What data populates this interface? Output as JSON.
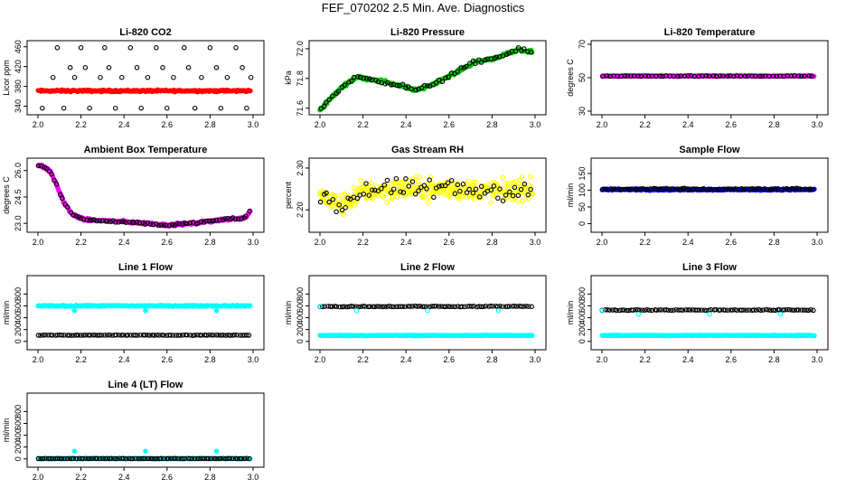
{
  "page_title": "FEF_070202  2.5 Min. Ave. Diagnostics",
  "colors": {
    "black": "#000000",
    "red": "#ff0000",
    "green": "#00cc00",
    "magenta": "#ff00ff",
    "yellow": "#ffff00",
    "blue": "#0000ff",
    "cyan": "#00ffff"
  },
  "chart_data": [
    {
      "type": "scatter",
      "title": "Li-820 CO2",
      "ylabel": "Licor ppm",
      "xlim": [
        2.0,
        3.0
      ],
      "ylim": [
        330,
        465
      ],
      "xticks": [
        "2.0",
        "2.2",
        "2.4",
        "2.6",
        "2.8",
        "3.0"
      ],
      "yticks": [
        340,
        380,
        420,
        460
      ],
      "series": [
        {
          "name": "avg",
          "color": "red",
          "level": 371,
          "noise": 1.5,
          "n": 260
        },
        {
          "name": "raw",
          "color": "black",
          "hollow": true,
          "points": [
            [
              2.02,
              336
            ],
            [
              2.07,
              398
            ],
            [
              2.09,
              458
            ],
            [
              2.12,
              336
            ],
            [
              2.15,
              418
            ],
            [
              2.17,
              398
            ],
            [
              2.2,
              458
            ],
            [
              2.22,
              418
            ],
            [
              2.24,
              336
            ],
            [
              2.29,
              398
            ],
            [
              2.31,
              458
            ],
            [
              2.33,
              418
            ],
            [
              2.36,
              336
            ],
            [
              2.39,
              398
            ],
            [
              2.43,
              458
            ],
            [
              2.46,
              418
            ],
            [
              2.48,
              336
            ],
            [
              2.51,
              398
            ],
            [
              2.55,
              458
            ],
            [
              2.58,
              418
            ],
            [
              2.6,
              336
            ],
            [
              2.63,
              398
            ],
            [
              2.68,
              458
            ],
            [
              2.7,
              418
            ],
            [
              2.73,
              336
            ],
            [
              2.76,
              398
            ],
            [
              2.8,
              458
            ],
            [
              2.83,
              418
            ],
            [
              2.85,
              336
            ],
            [
              2.88,
              398
            ],
            [
              2.92,
              458
            ],
            [
              2.95,
              418
            ],
            [
              2.97,
              336
            ],
            [
              2.99,
              398
            ]
          ]
        }
      ]
    },
    {
      "type": "line",
      "title": "Li-820 Pressure",
      "ylabel": "kPa",
      "xlim": [
        2.0,
        3.0
      ],
      "ylim": [
        71.58,
        72.03
      ],
      "xticks": [
        "2.0",
        "2.2",
        "2.4",
        "2.6",
        "2.8",
        "3.0"
      ],
      "yticks": [
        "71.6",
        "71.8",
        "72.0"
      ],
      "series": [
        {
          "name": "avg",
          "color": "green",
          "noise": 0.008,
          "n": 220,
          "knots": [
            [
              2.0,
              71.59
            ],
            [
              2.1,
              71.74
            ],
            [
              2.17,
              71.81
            ],
            [
              2.3,
              71.78
            ],
            [
              2.45,
              71.72
            ],
            [
              2.52,
              71.76
            ],
            [
              2.62,
              71.83
            ],
            [
              2.72,
              71.91
            ],
            [
              2.82,
              71.94
            ],
            [
              2.92,
              71.99
            ],
            [
              2.99,
              71.98
            ]
          ]
        },
        {
          "name": "raw",
          "color": "black",
          "hollow": true,
          "n": 70,
          "noise": 0.012,
          "same_curve": true
        }
      ]
    },
    {
      "type": "scatter",
      "title": "Li-820 Temperature",
      "ylabel": "degrees C",
      "xlim": [
        2.0,
        3.0
      ],
      "ylim": [
        30,
        70
      ],
      "xticks": [
        "2.0",
        "2.2",
        "2.4",
        "2.6",
        "2.8",
        "3.0"
      ],
      "yticks": [
        30,
        50,
        70
      ],
      "series": [
        {
          "name": "avg",
          "color": "magenta",
          "level": 51,
          "noise": 0.2,
          "n": 200
        },
        {
          "name": "raw",
          "color": "black",
          "hollow": true,
          "level": 51,
          "noise": 0.2,
          "n": 60
        }
      ]
    },
    {
      "type": "line",
      "title": "Ambient Box Temperature",
      "ylabel": "degrees C",
      "xlim": [
        2.0,
        3.0
      ],
      "ylim": [
        22.7,
        26.5
      ],
      "xticks": [
        "2.0",
        "2.2",
        "2.4",
        "2.6",
        "2.8",
        "3.0"
      ],
      "yticks": [
        "23.0",
        "24.5",
        "26.0"
      ],
      "series": [
        {
          "name": "avg",
          "color": "magenta",
          "noise": 0.06,
          "n": 260,
          "knots": [
            [
              2.0,
              26.3
            ],
            [
              2.03,
              26.2
            ],
            [
              2.06,
              25.9
            ],
            [
              2.09,
              25.1
            ],
            [
              2.12,
              24.2
            ],
            [
              2.16,
              23.5
            ],
            [
              2.22,
              23.2
            ],
            [
              2.3,
              23.15
            ],
            [
              2.45,
              23.05
            ],
            [
              2.6,
              22.9
            ],
            [
              2.72,
              23.0
            ],
            [
              2.85,
              23.2
            ],
            [
              2.95,
              23.3
            ],
            [
              2.97,
              23.4
            ],
            [
              2.99,
              23.8
            ]
          ]
        },
        {
          "name": "raw",
          "color": "black",
          "hollow": true,
          "n": 80,
          "noise": 0.05,
          "same_curve": true
        }
      ]
    },
    {
      "type": "scatter",
      "title": "Gas Stream RH",
      "ylabel": "percent",
      "xlim": [
        2.0,
        3.0
      ],
      "ylim": [
        2.155,
        2.315
      ],
      "xticks": [
        "2.0",
        "2.2",
        "2.4",
        "2.6",
        "2.8",
        "3.0"
      ],
      "yticks": [
        "2.20",
        "2.30"
      ],
      "series": [
        {
          "name": "avg",
          "color": "yellow",
          "hollow": true,
          "noise": 0.022,
          "n": 360,
          "knots": [
            [
              2.0,
              2.235
            ],
            [
              2.1,
              2.21
            ],
            [
              2.2,
              2.245
            ],
            [
              2.4,
              2.25
            ],
            [
              2.6,
              2.25
            ],
            [
              2.8,
              2.245
            ],
            [
              3.0,
              2.25
            ]
          ]
        },
        {
          "name": "raw",
          "color": "black",
          "hollow": true,
          "n": 70,
          "noise": 0.02,
          "same_curve": true
        }
      ]
    },
    {
      "type": "scatter",
      "title": "Sample Flow",
      "ylabel": "ml/min",
      "xlim": [
        2.0,
        3.0
      ],
      "ylim": [
        -15,
        185
      ],
      "xticks": [
        "2.0",
        "2.2",
        "2.4",
        "2.6",
        "2.8",
        "3.0"
      ],
      "yticks": [
        0,
        50,
        100,
        150
      ],
      "series": [
        {
          "name": "avg",
          "color": "blue",
          "level": 102,
          "noise": 2,
          "n": 260
        },
        {
          "name": "raw",
          "color": "black",
          "hollow": true,
          "level": 103,
          "noise": 2,
          "n": 80
        }
      ]
    },
    {
      "type": "scatter",
      "title": "Line 1 Flow",
      "ylabel": "ml/min",
      "xlim": [
        2.0,
        3.0
      ],
      "ylim": [
        -80,
        1050
      ],
      "xticks": [
        "2.0",
        "2.2",
        "2.4",
        "2.6",
        "2.8",
        "3.0"
      ],
      "yticks": [
        0,
        200,
        400,
        600,
        800
      ],
      "series": [
        {
          "name": "high",
          "color": "cyan",
          "level": 600,
          "noise": 8,
          "n": 240,
          "dips": [
            [
              2.17,
              520
            ],
            [
              2.5,
              520
            ],
            [
              2.83,
              520
            ]
          ]
        },
        {
          "name": "low",
          "color": "black",
          "hollow": true,
          "level": 105,
          "noise": 4,
          "n": 90
        }
      ]
    },
    {
      "type": "scatter",
      "title": "Line 2 Flow",
      "ylabel": "ml/min",
      "xlim": [
        2.0,
        3.0
      ],
      "ylim": [
        -80,
        1050
      ],
      "xticks": [
        "2.0",
        "2.2",
        "2.4",
        "2.6",
        "2.8",
        "3.0"
      ],
      "yticks": [
        0,
        200,
        400,
        600,
        800
      ],
      "series": [
        {
          "name": "low",
          "color": "cyan",
          "level": 100,
          "noise": 5,
          "n": 240
        },
        {
          "name": "high",
          "color": "black",
          "hollow": true,
          "level": 590,
          "noise": 6,
          "n": 90,
          "dips": [
            [
              2.0,
              590
            ],
            [
              2.17,
              520
            ],
            [
              2.5,
              520
            ],
            [
              2.83,
              520
            ]
          ],
          "dip_color": "cyan"
        }
      ]
    },
    {
      "type": "scatter",
      "title": "Line 3 Flow",
      "ylabel": "ml/min",
      "xlim": [
        2.0,
        3.0
      ],
      "ylim": [
        -80,
        1050
      ],
      "xticks": [
        "2.0",
        "2.2",
        "2.4",
        "2.6",
        "2.8",
        "3.0"
      ],
      "yticks": [
        0,
        200,
        400,
        600,
        800
      ],
      "series": [
        {
          "name": "low",
          "color": "cyan",
          "level": 100,
          "noise": 5,
          "n": 240
        },
        {
          "name": "high",
          "color": "black",
          "hollow": true,
          "level": 530,
          "noise": 6,
          "n": 90,
          "dips": [
            [
              2.0,
              520
            ],
            [
              2.17,
              460
            ],
            [
              2.5,
              460
            ],
            [
              2.83,
              460
            ]
          ],
          "dip_color": "cyan"
        }
      ]
    },
    {
      "type": "scatter",
      "title": "Line 4 (LT) Flow",
      "ylabel": "ml/min",
      "xlim": [
        2.0,
        3.0
      ],
      "ylim": [
        -80,
        1050
      ],
      "xticks": [
        "2.0",
        "2.2",
        "2.4",
        "2.6",
        "2.8",
        "3.0"
      ],
      "yticks": [
        0,
        200,
        400,
        600,
        800
      ],
      "series": [
        {
          "name": "low",
          "color": "cyan",
          "level": 5,
          "noise": 3,
          "n": 200,
          "spikes": [
            [
              2.17,
              130
            ],
            [
              2.5,
              130
            ],
            [
              2.83,
              130
            ]
          ]
        },
        {
          "name": "raw",
          "color": "black",
          "hollow": true,
          "level": 5,
          "noise": 3,
          "n": 90
        }
      ]
    }
  ]
}
